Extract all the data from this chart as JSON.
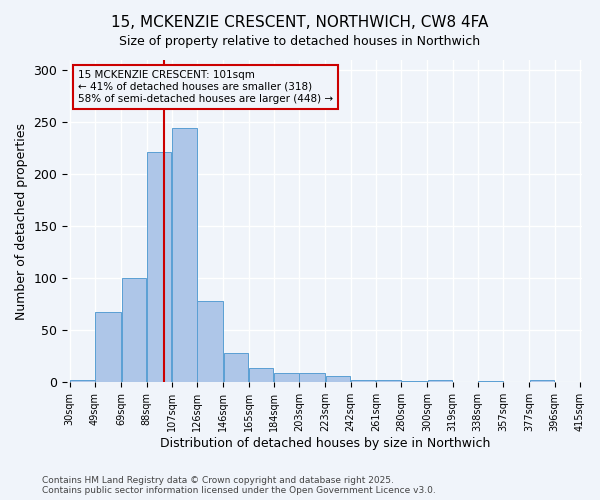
{
  "title1": "15, MCKENZIE CRESCENT, NORTHWICH, CW8 4FA",
  "title2": "Size of property relative to detached houses in Northwich",
  "xlabel": "Distribution of detached houses by size in Northwich",
  "ylabel": "Number of detached properties",
  "footer1": "Contains HM Land Registry data © Crown copyright and database right 2025.",
  "footer2": "Contains public sector information licensed under the Open Government Licence v3.0.",
  "annotation_title": "15 MCKENZIE CRESCENT: 101sqm",
  "annotation_line1": "← 41% of detached houses are smaller (318)",
  "annotation_line2": "58% of semi-detached houses are larger (448) →",
  "property_size": 101,
  "bin_edges": [
    30,
    49,
    69,
    88,
    107,
    126,
    146,
    165,
    184,
    203,
    223,
    242,
    261,
    280,
    300,
    319,
    338,
    357,
    377,
    396,
    415
  ],
  "bin_labels": [
    "30sqm",
    "49sqm",
    "69sqm",
    "88sqm",
    "107sqm",
    "126sqm",
    "146sqm",
    "165sqm",
    "184sqm",
    "203sqm",
    "223sqm",
    "242sqm",
    "261sqm",
    "280sqm",
    "300sqm",
    "319sqm",
    "338sqm",
    "357sqm",
    "377sqm",
    "396sqm",
    "415sqm"
  ],
  "bar_heights": [
    2,
    68,
    100,
    222,
    245,
    78,
    28,
    14,
    9,
    9,
    6,
    2,
    2,
    1,
    2,
    0,
    1,
    0,
    2,
    0
  ],
  "bar_color": "#aec6e8",
  "bar_edgecolor": "#5a9fd4",
  "vline_color": "#cc0000",
  "vline_x": 101,
  "background_color": "#f0f4fa",
  "grid_color": "#ffffff",
  "annotation_box_edgecolor": "#cc0000",
  "ylim": [
    0,
    310
  ],
  "yticks": [
    0,
    50,
    100,
    150,
    200,
    250,
    300
  ]
}
